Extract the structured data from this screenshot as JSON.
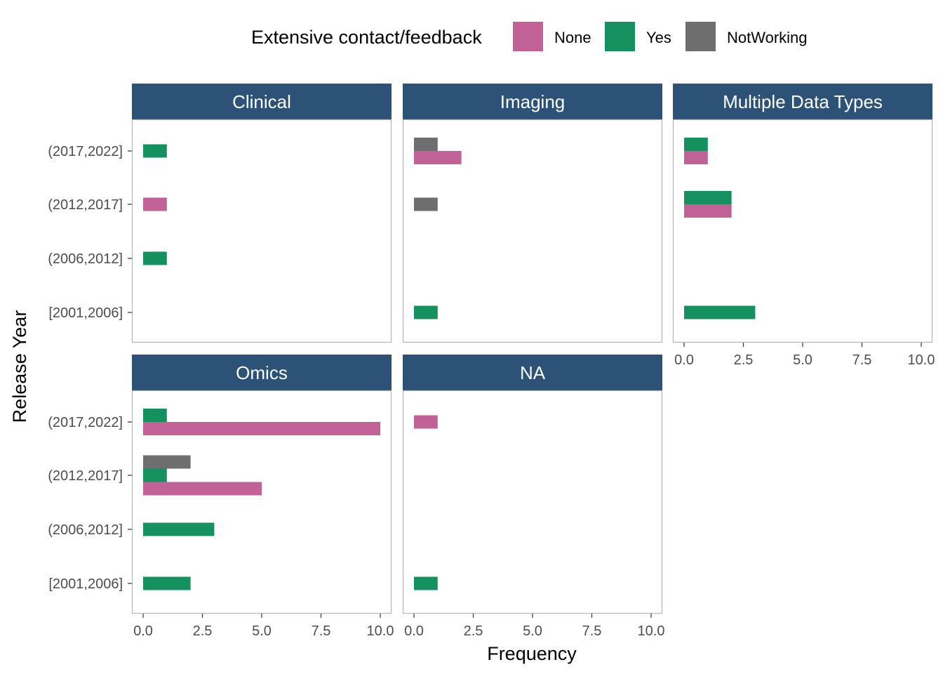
{
  "chart_data": {
    "type": "bar",
    "orientation": "horizontal",
    "facet_layout": "3 columns x 2 rows",
    "legend": {
      "title": "Extensive contact/feedback",
      "placement": "top",
      "entries": [
        {
          "name": "None",
          "color": "#C26197"
        },
        {
          "name": "Yes",
          "color": "#15915F"
        },
        {
          "name": "NotWorking",
          "color": "#6E6E6E"
        }
      ]
    },
    "xlabel": "Frequency",
    "ylabel": "Release Year",
    "xlim": [
      0,
      10
    ],
    "xticks": [
      "0.0",
      "2.5",
      "5.0",
      "7.5",
      "10.0"
    ],
    "xtick_values": [
      0,
      2.5,
      5,
      7.5,
      10
    ],
    "categories": [
      "(2017,2022]",
      "(2012,2017]",
      "(2006,2012]",
      "[2001,2006]"
    ],
    "strip_color": "#2C5278",
    "grid": false,
    "facets": [
      {
        "title": "Clinical",
        "series": [
          {
            "name": "None",
            "values": [
              0,
              1,
              0,
              0
            ]
          },
          {
            "name": "Yes",
            "values": [
              1,
              0,
              1,
              0
            ]
          },
          {
            "name": "NotWorking",
            "values": [
              0,
              0,
              0,
              0
            ]
          }
        ]
      },
      {
        "title": "Imaging",
        "series": [
          {
            "name": "None",
            "values": [
              2,
              0,
              0,
              0
            ]
          },
          {
            "name": "Yes",
            "values": [
              0,
              0,
              0,
              1
            ]
          },
          {
            "name": "NotWorking",
            "values": [
              1,
              1,
              0,
              0
            ]
          }
        ]
      },
      {
        "title": "Multiple Data Types",
        "series": [
          {
            "name": "None",
            "values": [
              1,
              2,
              0,
              0
            ]
          },
          {
            "name": "Yes",
            "values": [
              1,
              2,
              0,
              3
            ]
          },
          {
            "name": "NotWorking",
            "values": [
              0,
              0,
              0,
              0
            ]
          }
        ]
      },
      {
        "title": "Omics",
        "series": [
          {
            "name": "None",
            "values": [
              10,
              5,
              0,
              0
            ]
          },
          {
            "name": "Yes",
            "values": [
              1,
              1,
              3,
              2
            ]
          },
          {
            "name": "NotWorking",
            "values": [
              0,
              2,
              0,
              0
            ]
          }
        ]
      },
      {
        "title": "NA",
        "series": [
          {
            "name": "None",
            "values": [
              1,
              0,
              0,
              0
            ]
          },
          {
            "name": "Yes",
            "values": [
              0,
              0,
              0,
              1
            ]
          },
          {
            "name": "NotWorking",
            "values": [
              0,
              0,
              0,
              0
            ]
          }
        ]
      }
    ]
  }
}
